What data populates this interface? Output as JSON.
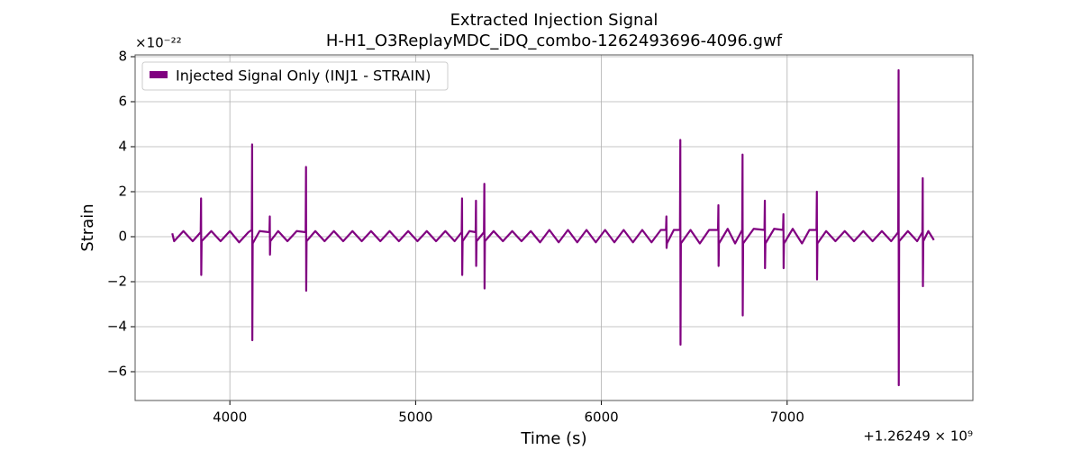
{
  "chart_data": {
    "type": "line",
    "title": "Extracted Injection Signal",
    "subtitle": "H-H1_O3ReplayMDC_iDQ_combo-1262493696-4096.gwf",
    "x_label": "Time (s)",
    "y_label": "Strain",
    "x_offset_text": "+1.26249 × 10⁹",
    "y_offset_text": "×10⁻²²",
    "xlim": [
      3490,
      8000
    ],
    "ylim": [
      -7.28,
      8.08
    ],
    "xticks": [
      4000,
      5000,
      6000,
      7000
    ],
    "yticks": [
      {
        "value": -6,
        "label": "−6"
      },
      {
        "value": -4,
        "label": "−4"
      },
      {
        "value": -2,
        "label": "−2"
      },
      0,
      2,
      4,
      6,
      8
    ],
    "grid": true,
    "legend": "upper left",
    "x": [
      3690,
      3700,
      3750,
      3800,
      3843,
      3845,
      3846,
      3848,
      3900,
      3950,
      4000,
      4050,
      4100,
      4118,
      4120,
      4121,
      4123,
      4160,
      4213,
      4215,
      4216,
      4218,
      4260,
      4310,
      4360,
      4408,
      4410,
      4411,
      4413,
      4460,
      4510,
      4560,
      4610,
      4660,
      4710,
      4760,
      4810,
      4860,
      4910,
      4960,
      5010,
      5060,
      5110,
      5160,
      5210,
      5248,
      5250,
      5251,
      5253,
      5290,
      5323,
      5325,
      5326,
      5328,
      5368,
      5370,
      5371,
      5373,
      5420,
      5470,
      5520,
      5570,
      5620,
      5670,
      5720,
      5770,
      5820,
      5870,
      5920,
      5970,
      6020,
      6070,
      6120,
      6170,
      6220,
      6270,
      6320,
      6348,
      6350,
      6351,
      6353,
      6390,
      6423,
      6425,
      6426,
      6428,
      6480,
      6530,
      6580,
      6628,
      6630,
      6631,
      6633,
      6680,
      6720,
      6758,
      6760,
      6761,
      6763,
      6820,
      6878,
      6880,
      6881,
      6883,
      6930,
      6978,
      6980,
      6981,
      6983,
      7030,
      7080,
      7120,
      7158,
      7160,
      7161,
      7163,
      7210,
      7260,
      7310,
      7360,
      7410,
      7460,
      7510,
      7560,
      7598,
      7600,
      7601,
      7603,
      7650,
      7700,
      7728,
      7730,
      7731,
      7733,
      7760,
      7790
    ],
    "series": [
      {
        "name": "Injected Signal Only (INJ1 - STRAIN)",
        "color": "#800080",
        "values": [
          0.15,
          -0.2,
          0.25,
          -0.2,
          0.2,
          1.7,
          -1.7,
          -0.2,
          0.25,
          -0.2,
          0.25,
          -0.25,
          0.2,
          0.3,
          4.1,
          -4.6,
          -0.3,
          0.25,
          0.2,
          0.9,
          -0.8,
          -0.2,
          0.25,
          -0.2,
          0.25,
          0.2,
          3.1,
          -2.4,
          -0.2,
          0.25,
          -0.2,
          0.25,
          -0.2,
          0.25,
          -0.2,
          0.25,
          -0.2,
          0.25,
          -0.2,
          0.25,
          -0.2,
          0.25,
          -0.2,
          0.25,
          -0.2,
          0.2,
          1.7,
          -1.7,
          -0.2,
          0.25,
          0.2,
          1.6,
          -1.3,
          -0.2,
          0.2,
          2.35,
          -2.3,
          -0.2,
          0.25,
          -0.2,
          0.25,
          -0.2,
          0.25,
          -0.25,
          0.3,
          -0.25,
          0.3,
          -0.25,
          0.3,
          -0.25,
          0.3,
          -0.25,
          0.3,
          -0.25,
          0.3,
          -0.25,
          0.3,
          0.3,
          0.9,
          -0.5,
          -0.3,
          0.3,
          0.3,
          4.3,
          -4.8,
          -0.3,
          0.3,
          -0.3,
          0.3,
          0.3,
          1.4,
          -1.3,
          -0.3,
          0.35,
          -0.3,
          0.3,
          3.65,
          -3.5,
          -0.3,
          0.35,
          0.3,
          1.6,
          -1.4,
          -0.3,
          0.35,
          0.3,
          1.0,
          -1.4,
          -0.3,
          0.35,
          -0.3,
          0.3,
          0.3,
          2.0,
          -1.9,
          -0.3,
          0.25,
          -0.2,
          0.25,
          -0.2,
          0.25,
          -0.2,
          0.25,
          -0.2,
          0.2,
          7.4,
          -6.6,
          -0.2,
          0.25,
          -0.2,
          0.2,
          2.6,
          -2.2,
          -0.2,
          0.25,
          -0.15
        ]
      }
    ]
  }
}
